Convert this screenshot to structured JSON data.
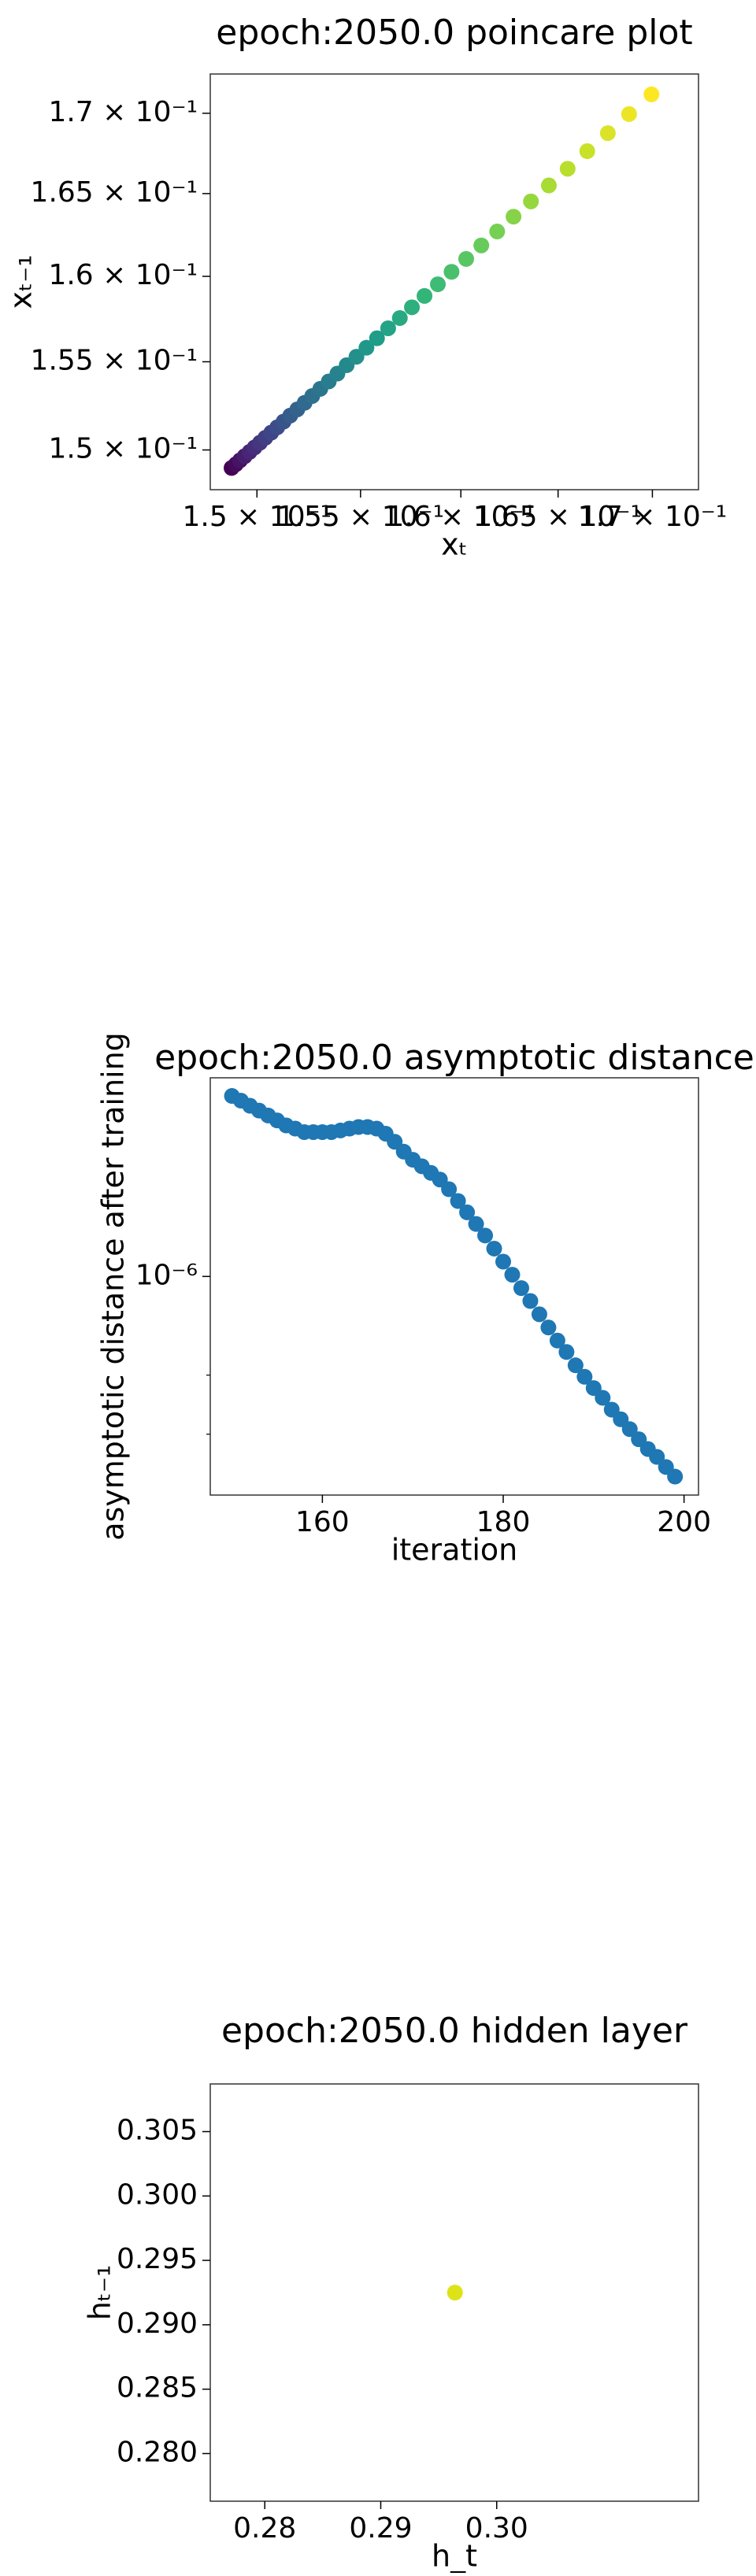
{
  "chart_data": [
    {
      "type": "scatter",
      "title": "epoch:2050.0 poincare plot",
      "xlabel": "xₜ",
      "ylabel": "xₜ₋₁",
      "xscale": "log",
      "yscale": "log",
      "colormap": "viridis",
      "xlim": [
        0.1478,
        0.1725
      ],
      "ylim": [
        0.1478,
        0.1725
      ],
      "xticks": [
        {
          "value": 0.15,
          "label": "1.5 × 10⁻¹"
        },
        {
          "value": 0.155,
          "label": "1.55 × 10⁻¹"
        },
        {
          "value": 0.16,
          "label": "1.6 × 10⁻¹"
        },
        {
          "value": 0.165,
          "label": "1.65 × 10⁻¹"
        },
        {
          "value": 0.17,
          "label": "1.7 × 10⁻¹"
        }
      ],
      "yticks": [
        {
          "value": 0.15,
          "label": "1.5 × 10⁻¹"
        },
        {
          "value": 0.155,
          "label": "1.55 × 10⁻¹"
        },
        {
          "value": 0.16,
          "label": "1.6 × 10⁻¹"
        },
        {
          "value": 0.165,
          "label": "1.65 × 10⁻¹"
        },
        {
          "value": 0.17,
          "label": "1.7 × 10⁻¹"
        }
      ],
      "x": [
        0.1488,
        0.149,
        0.1492,
        0.14942,
        0.14965,
        0.14989,
        0.15014,
        0.1504,
        0.15068,
        0.15097,
        0.15127,
        0.15159,
        0.15193,
        0.15228,
        0.15265,
        0.15304,
        0.15345,
        0.15387,
        0.15432,
        0.1548,
        0.15529,
        0.15581,
        0.15636,
        0.15694,
        0.15754,
        0.15817,
        0.15884,
        0.15953,
        0.16027,
        0.16104,
        0.16185,
        0.16269,
        0.16359,
        0.16452,
        0.1655,
        0.16653,
        0.16762,
        0.16875,
        0.16995
      ],
      "values": [
        0.149,
        0.1492,
        0.14942,
        0.14965,
        0.14989,
        0.15014,
        0.1504,
        0.15068,
        0.15097,
        0.15127,
        0.15159,
        0.15193,
        0.15228,
        0.15265,
        0.15304,
        0.15345,
        0.15387,
        0.15432,
        0.1548,
        0.15529,
        0.15581,
        0.15636,
        0.15694,
        0.15754,
        0.15817,
        0.15884,
        0.15953,
        0.16027,
        0.16104,
        0.16185,
        0.16269,
        0.16359,
        0.16452,
        0.1655,
        0.16653,
        0.16762,
        0.16875,
        0.16995,
        0.1712
      ]
    },
    {
      "type": "scatter",
      "title": "epoch:2050.0 asymptotic distance",
      "xlabel": "iteration",
      "ylabel": "asymptotic distance after training",
      "yscale": "log",
      "color": "#1f77b4",
      "xlim": [
        147.6,
        201.6
      ],
      "ylim": [
        6.1e-07,
        1.567e-06
      ],
      "xticks": [
        160,
        180,
        200
      ],
      "yticks": [
        {
          "value": 1e-06,
          "label": "10⁻⁶"
        }
      ],
      "yminorticks": [
        7e-07,
        8e-07
      ],
      "x": [
        150,
        151,
        152,
        153,
        154,
        155,
        156,
        157,
        158,
        159,
        160,
        161,
        162,
        163,
        164,
        165,
        166,
        167,
        168,
        169,
        170,
        171,
        172,
        173,
        174,
        175,
        176,
        177,
        178,
        179,
        180,
        181,
        182,
        183,
        184,
        185,
        186,
        187,
        188,
        189,
        190,
        191,
        192,
        193,
        194,
        195,
        196,
        197,
        198,
        199
      ],
      "values": [
        1.504e-06,
        1.488e-06,
        1.471e-06,
        1.455e-06,
        1.439e-06,
        1.423e-06,
        1.407e-06,
        1.397e-06,
        1.386e-06,
        1.386e-06,
        1.386e-06,
        1.386e-06,
        1.391e-06,
        1.397e-06,
        1.402e-06,
        1.402e-06,
        1.397e-06,
        1.381e-06,
        1.356e-06,
        1.326e-06,
        1.302e-06,
        1.283e-06,
        1.264e-06,
        1.245e-06,
        1.218e-06,
        1.186e-06,
        1.156e-06,
        1.126e-06,
        1.097e-06,
        1.065e-06,
        1.034e-06,
        1.004e-06,
        9.74e-07,
        9.46e-07,
        9.18e-07,
        8.91e-07,
        8.65e-07,
        8.43e-07,
        8.18e-07,
        7.97e-07,
        7.77e-07,
        7.6e-07,
        7.4e-07,
        7.24e-07,
        7.08e-07,
        6.92e-07,
        6.77e-07,
        6.65e-07,
        6.5e-07,
        6.36e-07
      ]
    },
    {
      "type": "scatter",
      "title": "epoch:2050.0 hidden layer",
      "xlabel": "h_t",
      "ylabel": "hₜ₋₁",
      "color": "#dde318",
      "xlim": [
        0.2753,
        0.3174
      ],
      "ylim": [
        0.2763,
        0.3087
      ],
      "xticks": [
        0.28,
        0.29,
        {
          "value": 0.3,
          "label": "0.30"
        }
      ],
      "yticks": [
        {
          "value": 0.28,
          "label": "0.280"
        },
        0.285,
        {
          "value": 0.29,
          "label": "0.290"
        },
        0.295,
        {
          "value": 0.3,
          "label": "0.300"
        },
        0.305
      ],
      "x": [
        0.2964
      ],
      "values": [
        0.2925
      ]
    }
  ]
}
